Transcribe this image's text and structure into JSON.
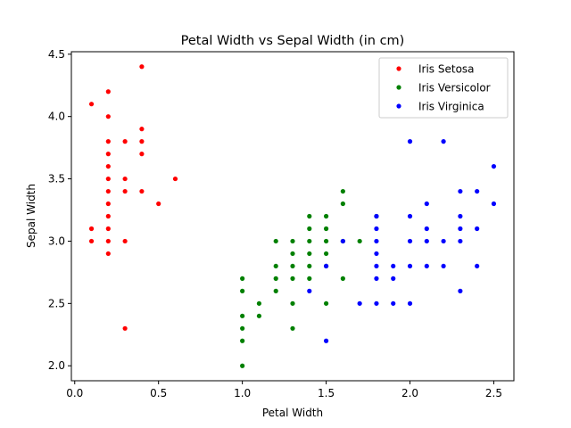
{
  "chart_data": {
    "type": "scatter",
    "title": "Petal Width vs Sepal Width (in cm)",
    "xlabel": "Petal Width",
    "ylabel": "Sepal Width",
    "xlim": [
      -0.02,
      2.62
    ],
    "ylim": [
      1.88,
      4.52
    ],
    "xticks": [
      0.0,
      0.5,
      1.0,
      1.5,
      2.0,
      2.5
    ],
    "xtick_labels": [
      "0.0",
      "0.5",
      "1.0",
      "1.5",
      "2.0",
      "2.5"
    ],
    "yticks": [
      2.0,
      2.5,
      3.0,
      3.5,
      4.0,
      4.5
    ],
    "ytick_labels": [
      "2.0",
      "2.5",
      "3.0",
      "3.5",
      "4.0",
      "4.5"
    ],
    "grid": false,
    "legend_position": "top-right",
    "series": [
      {
        "name": "Iris Setosa",
        "color": "#ff0000",
        "points": [
          [
            0.1,
            4.1
          ],
          [
            0.1,
            3.1
          ],
          [
            0.1,
            3.0
          ],
          [
            0.2,
            4.2
          ],
          [
            0.2,
            4.0
          ],
          [
            0.2,
            3.8
          ],
          [
            0.2,
            3.7
          ],
          [
            0.2,
            3.6
          ],
          [
            0.2,
            3.5
          ],
          [
            0.2,
            3.4
          ],
          [
            0.2,
            3.3
          ],
          [
            0.2,
            3.2
          ],
          [
            0.2,
            3.1
          ],
          [
            0.2,
            3.0
          ],
          [
            0.2,
            2.9
          ],
          [
            0.3,
            3.8
          ],
          [
            0.3,
            3.5
          ],
          [
            0.3,
            3.4
          ],
          [
            0.3,
            3.0
          ],
          [
            0.3,
            2.3
          ],
          [
            0.4,
            4.4
          ],
          [
            0.4,
            3.9
          ],
          [
            0.4,
            3.8
          ],
          [
            0.4,
            3.7
          ],
          [
            0.4,
            3.4
          ],
          [
            0.5,
            3.3
          ],
          [
            0.6,
            3.5
          ]
        ]
      },
      {
        "name": "Iris Versicolor",
        "color": "#008000",
        "points": [
          [
            1.0,
            2.7
          ],
          [
            1.0,
            2.6
          ],
          [
            1.0,
            2.4
          ],
          [
            1.0,
            2.3
          ],
          [
            1.0,
            2.2
          ],
          [
            1.0,
            2.0
          ],
          [
            1.1,
            2.5
          ],
          [
            1.1,
            2.4
          ],
          [
            1.2,
            3.0
          ],
          [
            1.2,
            2.8
          ],
          [
            1.2,
            2.7
          ],
          [
            1.2,
            2.6
          ],
          [
            1.3,
            3.0
          ],
          [
            1.3,
            2.9
          ],
          [
            1.3,
            2.8
          ],
          [
            1.3,
            2.7
          ],
          [
            1.3,
            2.5
          ],
          [
            1.3,
            2.3
          ],
          [
            1.4,
            3.2
          ],
          [
            1.4,
            3.1
          ],
          [
            1.4,
            3.0
          ],
          [
            1.4,
            2.9
          ],
          [
            1.4,
            2.8
          ],
          [
            1.4,
            2.7
          ],
          [
            1.5,
            3.2
          ],
          [
            1.5,
            3.1
          ],
          [
            1.5,
            3.0
          ],
          [
            1.5,
            2.9
          ],
          [
            1.5,
            2.8
          ],
          [
            1.5,
            2.5
          ],
          [
            1.6,
            3.4
          ],
          [
            1.6,
            3.3
          ],
          [
            1.6,
            3.0
          ],
          [
            1.6,
            2.7
          ],
          [
            1.7,
            3.0
          ],
          [
            1.8,
            3.2
          ]
        ]
      },
      {
        "name": "Iris Virginica",
        "color": "#0000ff",
        "points": [
          [
            1.4,
            2.6
          ],
          [
            1.5,
            2.8
          ],
          [
            1.5,
            2.2
          ],
          [
            1.6,
            3.0
          ],
          [
            1.7,
            2.5
          ],
          [
            1.8,
            3.2
          ],
          [
            1.8,
            3.1
          ],
          [
            1.8,
            3.0
          ],
          [
            1.8,
            2.9
          ],
          [
            1.8,
            2.8
          ],
          [
            1.8,
            2.7
          ],
          [
            1.8,
            2.5
          ],
          [
            1.9,
            2.8
          ],
          [
            1.9,
            2.7
          ],
          [
            1.9,
            2.5
          ],
          [
            2.0,
            3.8
          ],
          [
            2.0,
            3.2
          ],
          [
            2.0,
            3.0
          ],
          [
            2.0,
            2.8
          ],
          [
            2.0,
            2.5
          ],
          [
            2.1,
            3.3
          ],
          [
            2.1,
            3.1
          ],
          [
            2.1,
            3.0
          ],
          [
            2.1,
            2.8
          ],
          [
            2.2,
            3.8
          ],
          [
            2.2,
            3.0
          ],
          [
            2.2,
            2.8
          ],
          [
            2.3,
            3.4
          ],
          [
            2.3,
            3.2
          ],
          [
            2.3,
            3.1
          ],
          [
            2.3,
            3.0
          ],
          [
            2.3,
            2.6
          ],
          [
            2.4,
            3.4
          ],
          [
            2.4,
            3.1
          ],
          [
            2.4,
            2.8
          ],
          [
            2.5,
            3.6
          ],
          [
            2.5,
            3.3
          ]
        ]
      }
    ]
  }
}
